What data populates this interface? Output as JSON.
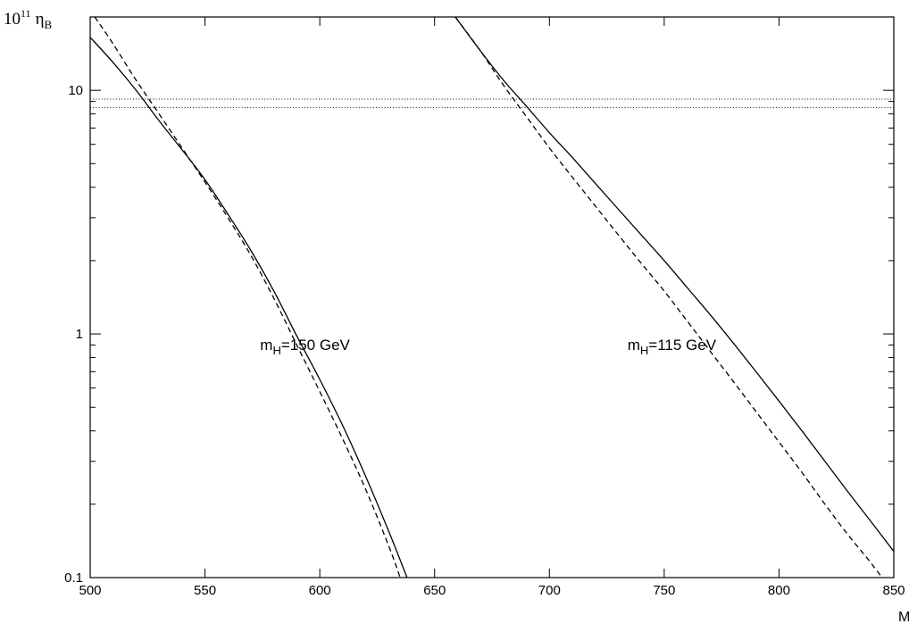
{
  "chart_data": {
    "type": "line",
    "title": "",
    "xlabel": "M",
    "ylabel": {
      "prefix": "10",
      "exponent": "11",
      "symbol": "η",
      "subscript": "B"
    },
    "xlim": [
      500,
      850
    ],
    "ylim": [
      0.1,
      20
    ],
    "yscale": "log",
    "grid": false,
    "x_ticks": [
      500,
      550,
      600,
      650,
      700,
      750,
      800,
      850
    ],
    "x_tick_labels": [
      "500",
      "550",
      "600",
      "650",
      "700",
      "750",
      "800",
      "850"
    ],
    "y_ticks": [
      0.1,
      1,
      10
    ],
    "y_tick_labels": [
      "0.1",
      "1",
      "10"
    ],
    "series": [
      {
        "style": "solid",
        "x": [
          500,
          510,
          520,
          530,
          540,
          550,
          560,
          570,
          580,
          590,
          600,
          610,
          620,
          630,
          638
        ],
        "y": [
          16.5,
          13.0,
          10.0,
          7.5,
          5.7,
          4.3,
          3.1,
          2.2,
          1.5,
          0.98,
          0.65,
          0.42,
          0.26,
          0.155,
          0.1
        ]
      },
      {
        "style": "dashed",
        "x": [
          502,
          510,
          520,
          530,
          540,
          550,
          560,
          570,
          580,
          590,
          600,
          610,
          620,
          630,
          635
        ],
        "y": [
          20,
          15.5,
          11.0,
          8.0,
          5.8,
          4.2,
          3.0,
          2.1,
          1.4,
          0.9,
          0.58,
          0.37,
          0.23,
          0.135,
          0.1
        ]
      },
      {
        "style": "solid",
        "x": [
          659,
          670,
          680,
          690,
          700,
          710,
          720,
          730,
          740,
          750,
          760,
          770,
          780,
          790,
          800,
          810,
          820,
          830,
          840,
          850
        ],
        "y": [
          20,
          14.5,
          11.0,
          8.6,
          6.7,
          5.3,
          4.15,
          3.25,
          2.55,
          2.0,
          1.55,
          1.2,
          0.92,
          0.7,
          0.53,
          0.4,
          0.3,
          0.225,
          0.17,
          0.128
        ]
      },
      {
        "style": "dashed",
        "x": [
          659,
          670,
          680,
          690,
          700,
          710,
          720,
          730,
          740,
          750,
          760,
          770,
          780,
          790,
          800,
          810,
          820,
          830,
          840,
          850
        ],
        "y": [
          20,
          14.5,
          10.5,
          7.8,
          5.8,
          4.4,
          3.35,
          2.55,
          1.95,
          1.5,
          1.13,
          0.85,
          0.64,
          0.48,
          0.36,
          0.27,
          0.2,
          0.15,
          0.115,
          0.086
        ]
      }
    ],
    "hlines": [
      {
        "y": 9.2,
        "style": "dotted"
      },
      {
        "y": 8.5,
        "style": "dotted"
      }
    ],
    "annotations": [
      {
        "text_main": "m",
        "text_sub": "H",
        "text_rest": "=150 GeV",
        "x": 574,
        "y": 0.86
      },
      {
        "text_main": "m",
        "text_sub": "H",
        "text_rest": "=115 GeV",
        "x": 734,
        "y": 0.86
      }
    ]
  }
}
